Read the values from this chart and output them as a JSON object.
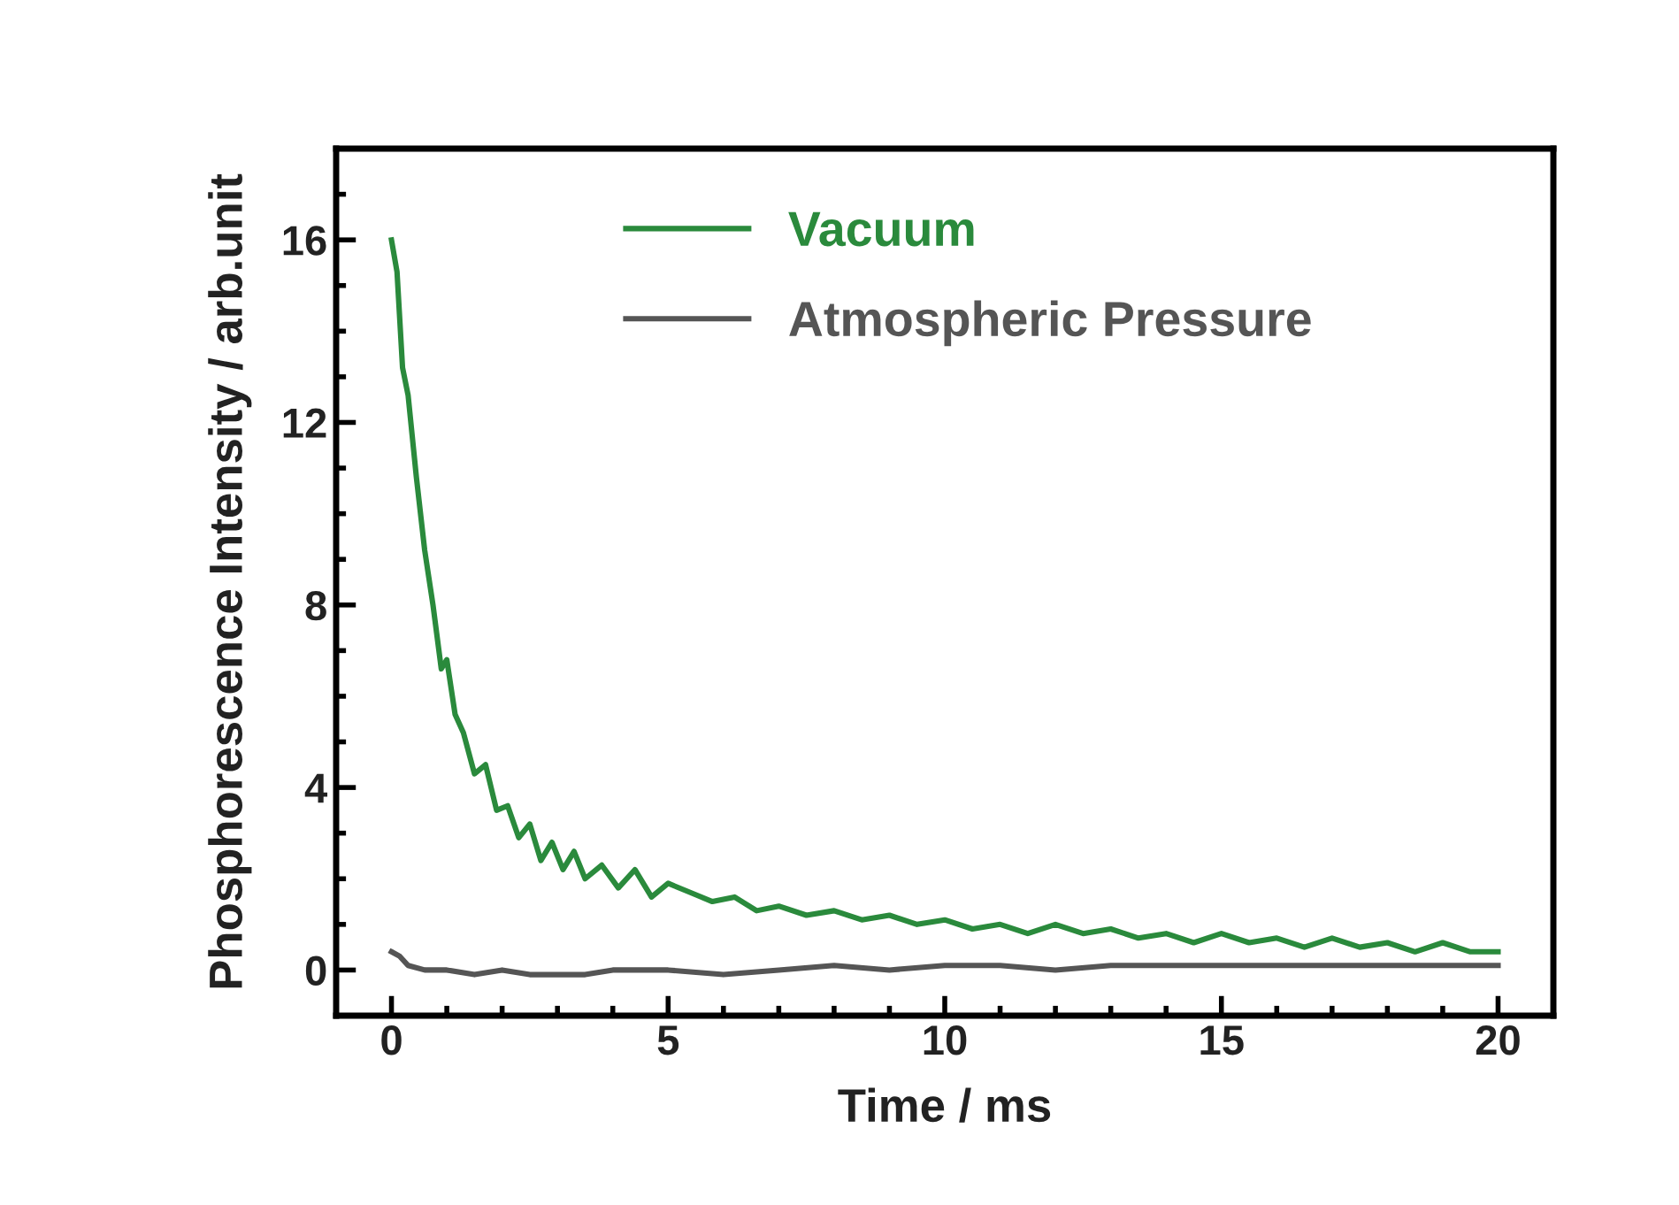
{
  "chart_data": {
    "type": "line",
    "xlabel": "Time / ms",
    "ylabel": "Phosphorescence Intensity / arb.unit",
    "xlim": [
      -1,
      21
    ],
    "ylim": [
      -1,
      18
    ],
    "xticks": [
      0,
      5,
      10,
      15,
      20
    ],
    "yticks": [
      0,
      4,
      8,
      12,
      16
    ],
    "grid": false,
    "legend": "top",
    "marker": "none",
    "line_style": "solid",
    "series": [
      {
        "name": "Vacuum",
        "color": "#2a8a3c",
        "x": [
          0,
          0.1,
          0.2,
          0.3,
          0.45,
          0.6,
          0.75,
          0.9,
          1.0,
          1.15,
          1.3,
          1.5,
          1.7,
          1.9,
          2.1,
          2.3,
          2.5,
          2.7,
          2.9,
          3.1,
          3.3,
          3.5,
          3.8,
          4.1,
          4.4,
          4.7,
          5.0,
          5.4,
          5.8,
          6.2,
          6.6,
          7.0,
          7.5,
          8.0,
          8.5,
          9.0,
          9.5,
          10.0,
          10.5,
          11.0,
          11.5,
          12.0,
          12.5,
          13.0,
          13.5,
          14.0,
          14.5,
          15.0,
          15.5,
          16.0,
          16.5,
          17.0,
          17.5,
          18.0,
          18.5,
          19.0,
          19.5,
          20.0
        ],
        "values": [
          16.0,
          15.3,
          13.2,
          12.6,
          10.8,
          9.2,
          8.0,
          6.6,
          6.8,
          5.6,
          5.2,
          4.3,
          4.5,
          3.5,
          3.6,
          2.9,
          3.2,
          2.4,
          2.8,
          2.2,
          2.6,
          2.0,
          2.3,
          1.8,
          2.2,
          1.6,
          1.9,
          1.7,
          1.5,
          1.6,
          1.3,
          1.4,
          1.2,
          1.3,
          1.1,
          1.2,
          1.0,
          1.1,
          0.9,
          1.0,
          0.8,
          1.0,
          0.8,
          0.9,
          0.7,
          0.8,
          0.6,
          0.8,
          0.6,
          0.7,
          0.5,
          0.7,
          0.5,
          0.6,
          0.4,
          0.6,
          0.4,
          0.4
        ]
      },
      {
        "name": "Atmospheric Pressure",
        "color": "#555555",
        "x": [
          0,
          0.15,
          0.3,
          0.6,
          1.0,
          1.5,
          2.0,
          2.5,
          3.0,
          3.5,
          4.0,
          5.0,
          6.0,
          7.0,
          8.0,
          9.0,
          10.0,
          11.0,
          12.0,
          13.0,
          14.0,
          15.0,
          16.0,
          17.0,
          18.0,
          19.0,
          20.0
        ],
        "values": [
          0.4,
          0.3,
          0.1,
          0.0,
          0.0,
          -0.1,
          0.0,
          -0.1,
          -0.1,
          -0.1,
          0.0,
          0.0,
          -0.1,
          0.0,
          0.1,
          0.0,
          0.1,
          0.1,
          0.0,
          0.1,
          0.1,
          0.1,
          0.1,
          0.1,
          0.1,
          0.1,
          0.1
        ]
      }
    ]
  }
}
